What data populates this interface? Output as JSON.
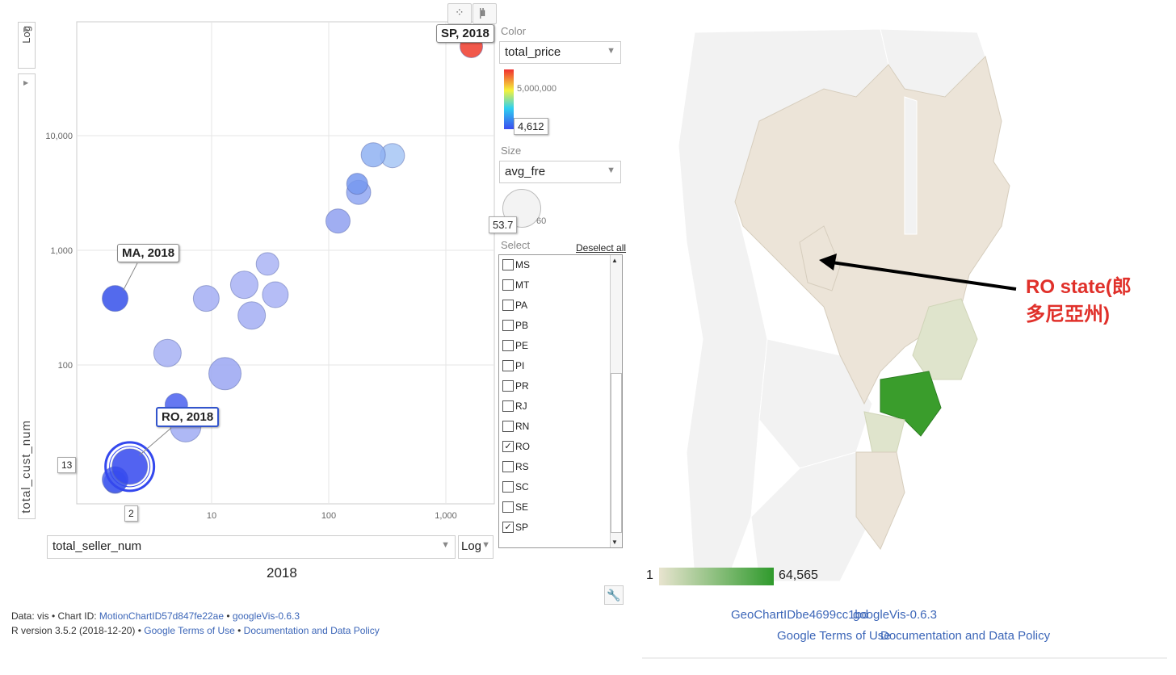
{
  "chart_data": [
    {
      "type": "scatter",
      "subtype": "bubble (Google Motion Chart)",
      "xlabel": "total_seller_num",
      "ylabel": "total_cust_num",
      "x_scale": "log",
      "y_scale": "log",
      "x_ticks": [
        "10",
        "100",
        "1,000"
      ],
      "y_ticks": [
        "100",
        "1,000",
        "10,000"
      ],
      "time_label": "2018",
      "color_variable": "total_price",
      "color_scale": {
        "min": "4,612",
        "mid": "5,000,000",
        "colors": [
          "#3b4cf0",
          "#2fd0f0",
          "#f5f23b",
          "#f03030"
        ]
      },
      "size_variable": "avg_fre",
      "size_legend": {
        "value": "53.7",
        "max": "60"
      },
      "points": [
        {
          "label": "SP, 2018",
          "x": 1650,
          "y": 60000,
          "color": "#ee3b2b",
          "r": 14,
          "shown_label": true
        },
        {
          "label": "MA, 2018",
          "x": 1.5,
          "y": 380,
          "color": "#3550ea",
          "r": 16,
          "shown_label": true
        },
        {
          "label": "RO, 2018",
          "x": 2,
          "y": 13,
          "color": "#3448ee",
          "r": 22,
          "shown_label": true,
          "selected": true
        },
        {
          "x": 240,
          "y": 6800,
          "color": "#8fb2f2",
          "r": 15
        },
        {
          "x": 350,
          "y": 6700,
          "color": "#a6c6f4",
          "r": 15
        },
        {
          "x": 175,
          "y": 3800,
          "color": "#7598ee",
          "r": 13
        },
        {
          "x": 180,
          "y": 3200,
          "color": "#91a7f2",
          "r": 15
        },
        {
          "x": 120,
          "y": 1800,
          "color": "#8fa0f0",
          "r": 15
        },
        {
          "x": 30,
          "y": 760,
          "color": "#aab4f4",
          "r": 14
        },
        {
          "x": 19,
          "y": 500,
          "color": "#a8b2f4",
          "r": 17
        },
        {
          "x": 35,
          "y": 410,
          "color": "#a8b2f4",
          "r": 16
        },
        {
          "x": 9,
          "y": 380,
          "color": "#a3aef3",
          "r": 16
        },
        {
          "x": 22,
          "y": 270,
          "color": "#a3aef3",
          "r": 17
        },
        {
          "x": 4.2,
          "y": 127,
          "color": "#a6b0f3",
          "r": 17
        },
        {
          "x": 13,
          "y": 84,
          "color": "#9aa6f2",
          "r": 20
        },
        {
          "x": 5,
          "y": 45,
          "color": "#4a60ee",
          "r": 14
        },
        {
          "x": 6,
          "y": 29,
          "color": "#a0abf3",
          "r": 19
        },
        {
          "x": 1.5,
          "y": 10,
          "color": "#4a62ee",
          "r": 16
        },
        {
          "x": 1.5,
          "y": 9.5,
          "color": "#3d56ee",
          "r": 14
        }
      ],
      "value_readouts": {
        "x": "2",
        "y": "13"
      }
    },
    {
      "type": "heatmap",
      "subtype": "geo (Brazil states)",
      "colorbar": {
        "min": "1",
        "max": "64,565",
        "colors": [
          "#e8e4cf",
          "#2f9a2c"
        ]
      },
      "highlighted": [
        {
          "state": "SP",
          "color": "#3a9d2c"
        },
        {
          "state": "RJ/MG/PR",
          "color": "#dde2c8"
        }
      ],
      "annotation": "RO state(郎\n多尼亞州)"
    }
  ],
  "motion": {
    "y_scale_btn": "Log",
    "x_selector": "total_seller_num",
    "x_scale_btn": "Log",
    "year": "2018",
    "color_label": "Color",
    "color_value": "total_price",
    "color_mid": "5,000,000",
    "color_min": "4,612",
    "size_label": "Size",
    "size_value": "avg_fre",
    "size_max": "60",
    "size_current": "53.7",
    "select_label": "Select",
    "deselect": "Deselect all",
    "states": [
      {
        "code": "MS",
        "checked": ""
      },
      {
        "code": "MT",
        "checked": ""
      },
      {
        "code": "PA",
        "checked": ""
      },
      {
        "code": "PB",
        "checked": ""
      },
      {
        "code": "PE",
        "checked": ""
      },
      {
        "code": "PI",
        "checked": ""
      },
      {
        "code": "PR",
        "checked": ""
      },
      {
        "code": "RJ",
        "checked": ""
      },
      {
        "code": "RN",
        "checked": ""
      },
      {
        "code": "RO",
        "checked": "✓"
      },
      {
        "code": "RS",
        "checked": ""
      },
      {
        "code": "SC",
        "checked": ""
      },
      {
        "code": "SE",
        "checked": ""
      },
      {
        "code": "SP",
        "checked": "✓"
      }
    ],
    "footer1_prefix": "Data: vis • Chart ID: ",
    "footer1_chart": "MotionChartID57d847fe22ae",
    "footer1_sep": " • ",
    "footer1_pkg": "googleVis-0.6.3",
    "footer2_prefix": "R version 3.5.2 (2018-12-20) • ",
    "footer2_terms": "Google Terms of Use",
    "footer2_sep": " • ",
    "footer2_policy": "Documentation and Data Policy"
  },
  "geo": {
    "legend_min": "1",
    "legend_max": "64,565",
    "annotation": "RO state(郎\n多尼亞州)",
    "link_chart": "GeoChartIDbe4699cc1bd",
    "link_pkg": "googleVis-0.6.3",
    "link_terms": "Google Terms of Use",
    "link_policy": "Documentation and Data Policy",
    "colors": {
      "land": "#ece4d8",
      "neighbor": "#f2f2f2",
      "border": "#ffffff",
      "sp": "#3a9d2c",
      "near": "#dfe4cc"
    }
  }
}
